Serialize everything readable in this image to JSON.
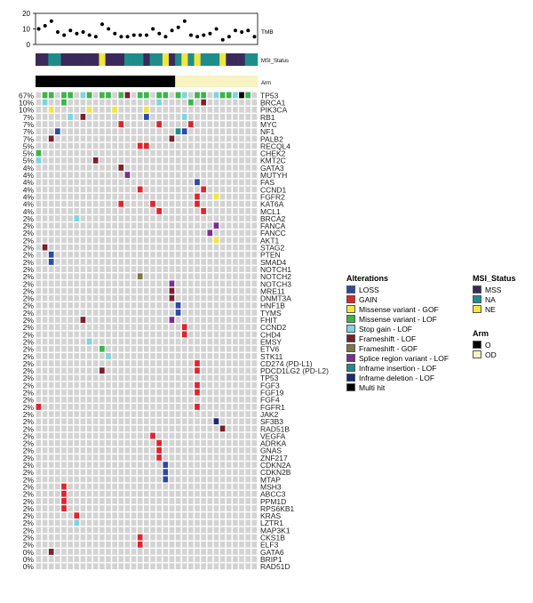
{
  "chart_data": {
    "type": "heatmap",
    "tmb": {
      "label": "TMB",
      "yticks": [
        0,
        10,
        20
      ],
      "ylim": [
        0,
        20
      ],
      "values": [
        10,
        12,
        15,
        8,
        6,
        9,
        7,
        8,
        6,
        5,
        13,
        10,
        7,
        5,
        5,
        6,
        6,
        6,
        10,
        7,
        5,
        9,
        11,
        15,
        6,
        5,
        6,
        7,
        10,
        3,
        5,
        9,
        8,
        9,
        5
      ]
    },
    "msi_status": {
      "label": "MSI_Status",
      "values": [
        "MSS",
        "MSS",
        "NA",
        "NA",
        "MSS",
        "MSS",
        "MSS",
        "MSS",
        "MSS",
        "MSS",
        "NE",
        "MSS",
        "MSS",
        "MSS",
        "NA",
        "NA",
        "NA",
        "MSS",
        "NA",
        "NA",
        "NE",
        "MSS",
        "NA",
        "NE",
        "NA",
        "NE",
        "NA",
        "NA",
        "NA",
        "NE",
        "MSS",
        "MSS",
        "MSS",
        "NA",
        "NA"
      ]
    },
    "arm": {
      "label": "Arm",
      "values": [
        "O",
        "O",
        "O",
        "O",
        "O",
        "O",
        "O",
        "O",
        "O",
        "O",
        "O",
        "O",
        "O",
        "O",
        "O",
        "O",
        "O",
        "O",
        "O",
        "O",
        "O",
        "O",
        "OD",
        "OD",
        "OD",
        "OD",
        "OD",
        "OD",
        "OD",
        "OD",
        "OD",
        "OD",
        "OD",
        "OD",
        "OD"
      ]
    },
    "genes": [
      "TP53",
      "BRCA1",
      "PIK3CA",
      "RB1",
      "MYC",
      "NF1",
      "PALB2",
      "RECQL4",
      "CHEK2",
      "KMT2C",
      "GATA3",
      "MUTYH",
      "FAS",
      "CCND1",
      "FGFR2",
      "KAT6A",
      "MCL1",
      "BRCA2",
      "FANCA",
      "FANCC",
      "AKT1",
      "STAG2",
      "PTEN",
      "SMAD4",
      "NOTCH1",
      "NOTCH2",
      "NOTCH3",
      "MRE11",
      "DNMT3A",
      "HNF1B",
      "TYMS",
      "FHIT",
      "CCND2",
      "CHD4",
      "EMSY",
      "ETV6",
      "STK11",
      "CD274 (PD-L1)",
      "PDCD1LG2 (PD-L2)",
      "TP53",
      "FGF3",
      "FGF19",
      "FGF4",
      "FGFR1",
      "JAK2",
      "SF3B3",
      "RAD51B",
      "VEGFA",
      "ADRKA",
      "GNAS",
      "ZNF217",
      "CDKN2A",
      "CDKN2B",
      "MTAP",
      "MSH3",
      "ABCC3",
      "PPM1D",
      "RPS6KB1",
      "KRAS",
      "LZTR1",
      "MAP3K1",
      "CKS1B",
      "ELF3",
      "GATA6",
      "BRIP1",
      "RAD51D"
    ],
    "percents": [
      "67%",
      "10%",
      "10%",
      "7%",
      "7%",
      "7%",
      "7%",
      "5%",
      "5%",
      "5%",
      "4%",
      "4%",
      "4%",
      "4%",
      "4%",
      "4%",
      "4%",
      "2%",
      "2%",
      "2%",
      "2%",
      "2%",
      "2%",
      "2%",
      "2%",
      "2%",
      "2%",
      "2%",
      "2%",
      "2%",
      "2%",
      "2%",
      "2%",
      "2%",
      "2%",
      "2%",
      "2%",
      "2%",
      "2%",
      "2%",
      "2%",
      "2%",
      "2%",
      "2%",
      "2%",
      "2%",
      "2%",
      "2%",
      "2%",
      "2%",
      "2%",
      "2%",
      "2%",
      "2%",
      "2%",
      "2%",
      "2%",
      "2%",
      "2%",
      "2%",
      "2%",
      "2%",
      "2%",
      "0%",
      "0%",
      "0%"
    ],
    "alterations": [
      {
        "gene": "TP53",
        "sample": 1,
        "type": "Missense variant - LOF"
      },
      {
        "gene": "TP53",
        "sample": 2,
        "type": "Missense variant - LOF"
      },
      {
        "gene": "TP53",
        "sample": 4,
        "type": "Missense variant - LOF"
      },
      {
        "gene": "TP53",
        "sample": 5,
        "type": "Missense variant - LOF"
      },
      {
        "gene": "TP53",
        "sample": 7,
        "type": "Stop gain - LOF"
      },
      {
        "gene": "TP53",
        "sample": 8,
        "type": "Missense variant - LOF"
      },
      {
        "gene": "TP53",
        "sample": 10,
        "type": "Missense variant - LOF"
      },
      {
        "gene": "TP53",
        "sample": 11,
        "type": "Missense variant - LOF"
      },
      {
        "gene": "TP53",
        "sample": 13,
        "type": "Missense variant - LOF"
      },
      {
        "gene": "TP53",
        "sample": 14,
        "type": "Frameshift - LOF"
      },
      {
        "gene": "TP53",
        "sample": 16,
        "type": "Missense variant - LOF"
      },
      {
        "gene": "TP53",
        "sample": 17,
        "type": "Missense variant - LOF"
      },
      {
        "gene": "TP53",
        "sample": 19,
        "type": "Missense variant - LOF"
      },
      {
        "gene": "TP53",
        "sample": 20,
        "type": "Missense variant - LOF"
      },
      {
        "gene": "TP53",
        "sample": 22,
        "type": "Missense variant - LOF"
      },
      {
        "gene": "TP53",
        "sample": 23,
        "type": "Stop gain - LOF"
      },
      {
        "gene": "TP53",
        "sample": 25,
        "type": "Missense variant - LOF"
      },
      {
        "gene": "TP53",
        "sample": 26,
        "type": "Missense variant - LOF"
      },
      {
        "gene": "TP53",
        "sample": 28,
        "type": "Stop gain - LOF"
      },
      {
        "gene": "TP53",
        "sample": 29,
        "type": "Missense variant - LOF"
      },
      {
        "gene": "TP53",
        "sample": 30,
        "type": "Missense variant - LOF"
      },
      {
        "gene": "TP53",
        "sample": 31,
        "type": "Stop gain - LOF"
      },
      {
        "gene": "TP53",
        "sample": 32,
        "type": "Multi hit"
      },
      {
        "gene": "TP53",
        "sample": 33,
        "type": "Missense variant - LOF"
      },
      {
        "gene": "BRCA1",
        "sample": 1,
        "type": "Stop gain - LOF"
      },
      {
        "gene": "BRCA1",
        "sample": 4,
        "type": "Missense variant - LOF"
      },
      {
        "gene": "BRCA1",
        "sample": 19,
        "type": "Stop gain - LOF"
      },
      {
        "gene": "BRCA1",
        "sample": 24,
        "type": "Missense variant - LOF"
      },
      {
        "gene": "BRCA1",
        "sample": 26,
        "type": "Frameshift - LOF"
      },
      {
        "gene": "PIK3CA",
        "sample": 2,
        "type": "Missense variant - GOF"
      },
      {
        "gene": "PIK3CA",
        "sample": 8,
        "type": "Missense variant - GOF"
      },
      {
        "gene": "PIK3CA",
        "sample": 12,
        "type": "Missense variant - GOF"
      },
      {
        "gene": "PIK3CA",
        "sample": 17,
        "type": "Missense variant - GOF"
      },
      {
        "gene": "RB1",
        "sample": 5,
        "type": "Stop gain - LOF"
      },
      {
        "gene": "RB1",
        "sample": 7,
        "type": "Frameshift - LOF"
      },
      {
        "gene": "RB1",
        "sample": 17,
        "type": "LOSS"
      },
      {
        "gene": "RB1",
        "sample": 23,
        "type": "Stop gain - LOF"
      },
      {
        "gene": "MYC",
        "sample": 13,
        "type": "GAIN"
      },
      {
        "gene": "MYC",
        "sample": 19,
        "type": "GAIN"
      },
      {
        "gene": "MYC",
        "sample": 24,
        "type": "GAIN"
      },
      {
        "gene": "NF1",
        "sample": 3,
        "type": "LOSS"
      },
      {
        "gene": "NF1",
        "sample": 22,
        "type": "Inframe insertion - LOF"
      },
      {
        "gene": "NF1",
        "sample": 23,
        "type": "LOSS"
      },
      {
        "gene": "PALB2",
        "sample": 2,
        "type": "Frameshift - LOF"
      },
      {
        "gene": "PALB2",
        "sample": 21,
        "type": "Frameshift - LOF"
      },
      {
        "gene": "RECQL4",
        "sample": 16,
        "type": "GAIN"
      },
      {
        "gene": "RECQL4",
        "sample": 17,
        "type": "GAIN"
      },
      {
        "gene": "CHEK2",
        "sample": 0,
        "type": "Missense variant - LOF"
      },
      {
        "gene": "KMT2C",
        "sample": 0,
        "type": "Stop gain - LOF"
      },
      {
        "gene": "KMT2C",
        "sample": 9,
        "type": "Frameshift - LOF"
      },
      {
        "gene": "GATA3",
        "sample": 13,
        "type": "Frameshift - LOF"
      },
      {
        "gene": "MUTYH",
        "sample": 14,
        "type": "Splice region variant - LOF"
      },
      {
        "gene": "FAS",
        "sample": 25,
        "type": "LOSS"
      },
      {
        "gene": "CCND1",
        "sample": 16,
        "type": "GAIN"
      },
      {
        "gene": "CCND1",
        "sample": 26,
        "type": "GAIN"
      },
      {
        "gene": "FGFR2",
        "sample": 25,
        "type": "GAIN"
      },
      {
        "gene": "FGFR2",
        "sample": 28,
        "type": "Missense variant - GOF"
      },
      {
        "gene": "KAT6A",
        "sample": 13,
        "type": "GAIN"
      },
      {
        "gene": "KAT6A",
        "sample": 18,
        "type": "GAIN"
      },
      {
        "gene": "KAT6A",
        "sample": 25,
        "type": "GAIN"
      },
      {
        "gene": "MCL1",
        "sample": 19,
        "type": "GAIN"
      },
      {
        "gene": "MCL1",
        "sample": 26,
        "type": "GAIN"
      },
      {
        "gene": "BRCA2",
        "sample": 6,
        "type": "Stop gain - LOF"
      },
      {
        "gene": "FANCA",
        "sample": 28,
        "type": "Splice region variant - LOF"
      },
      {
        "gene": "FANCC",
        "sample": 27,
        "type": "Splice region variant - LOF"
      },
      {
        "gene": "AKT1",
        "sample": 28,
        "type": "Missense variant - GOF"
      },
      {
        "gene": "STAG2",
        "sample": 1,
        "type": "Frameshift - LOF"
      },
      {
        "gene": "PTEN",
        "sample": 2,
        "type": "LOSS"
      },
      {
        "gene": "SMAD4",
        "sample": 2,
        "type": "LOSS"
      },
      {
        "gene": "NOTCH2",
        "sample": 16,
        "type": "Frameshift - GOF"
      },
      {
        "gene": "NOTCH3",
        "sample": 21,
        "type": "Splice region variant - LOF"
      },
      {
        "gene": "MRE11",
        "sample": 21,
        "type": "Frameshift - LOF"
      },
      {
        "gene": "DNMT3A",
        "sample": 21,
        "type": "Frameshift - LOF"
      },
      {
        "gene": "HNF1B",
        "sample": 22,
        "type": "LOSS"
      },
      {
        "gene": "TYMS",
        "sample": 22,
        "type": "LOSS"
      },
      {
        "gene": "FHIT",
        "sample": 7,
        "type": "Frameshift - LOF"
      },
      {
        "gene": "FHIT",
        "sample": 21,
        "type": "Splice region variant - LOF"
      },
      {
        "gene": "CCND2",
        "sample": 23,
        "type": "GAIN"
      },
      {
        "gene": "CHD4",
        "sample": 23,
        "type": "GAIN"
      },
      {
        "gene": "EMSY",
        "sample": 8,
        "type": "Stop gain - LOF"
      },
      {
        "gene": "ETV6",
        "sample": 10,
        "type": "Missense variant - LOF"
      },
      {
        "gene": "STK11",
        "sample": 11,
        "type": "Stop gain - LOF"
      },
      {
        "gene": "CD274 (PD-L1)",
        "sample": 25,
        "type": "GAIN"
      },
      {
        "gene": "PDCD1LG2 (PD-L2)",
        "sample": 10,
        "type": "Frameshift - LOF"
      },
      {
        "gene": "PDCD1LG2 (PD-L2)",
        "sample": 25,
        "type": "GAIN"
      },
      {
        "gene": "FGF3",
        "sample": 25,
        "type": "GAIN"
      },
      {
        "gene": "FGF19",
        "sample": 25,
        "type": "GAIN"
      },
      {
        "gene": "FGFR1",
        "sample": 0,
        "type": "GAIN"
      },
      {
        "gene": "FGFR1",
        "sample": 25,
        "type": "GAIN"
      },
      {
        "gene": "SF3B3",
        "sample": 28,
        "type": "Inframe deletion - LOF"
      },
      {
        "gene": "RAD51B",
        "sample": 29,
        "type": "Frameshift - LOF"
      },
      {
        "gene": "VEGFA",
        "sample": 18,
        "type": "GAIN"
      },
      {
        "gene": "ADRKA",
        "sample": 19,
        "type": "GAIN"
      },
      {
        "gene": "GNAS",
        "sample": 19,
        "type": "GAIN"
      },
      {
        "gene": "ZNF217",
        "sample": 19,
        "type": "GAIN"
      },
      {
        "gene": "CDKN2A",
        "sample": 20,
        "type": "LOSS"
      },
      {
        "gene": "CDKN2B",
        "sample": 20,
        "type": "LOSS"
      },
      {
        "gene": "MTAP",
        "sample": 20,
        "type": "LOSS"
      },
      {
        "gene": "MSH3",
        "sample": 4,
        "type": "GAIN"
      },
      {
        "gene": "ABCC3",
        "sample": 4,
        "type": "GAIN"
      },
      {
        "gene": "PPM1D",
        "sample": 4,
        "type": "GAIN"
      },
      {
        "gene": "RPS6KB1",
        "sample": 4,
        "type": "GAIN"
      },
      {
        "gene": "KRAS",
        "sample": 6,
        "type": "GAIN"
      },
      {
        "gene": "LZTR1",
        "sample": 6,
        "type": "Stop gain - LOF"
      },
      {
        "gene": "CKS1B",
        "sample": 16,
        "type": "GAIN"
      },
      {
        "gene": "ELF3",
        "sample": 16,
        "type": "GAIN"
      },
      {
        "gene": "GATA6",
        "sample": 2,
        "type": "Frameshift - LOF"
      }
    ],
    "legend_alterations": {
      "title": "Alterations",
      "items": [
        {
          "label": "LOSS",
          "color": "#2c4aa5"
        },
        {
          "label": "GAIN",
          "color": "#e3222d"
        },
        {
          "label": "Missense variant - GOF",
          "color": "#f2e63f"
        },
        {
          "label": "Missense variant - LOF",
          "color": "#3bb54a"
        },
        {
          "label": "Stop gain - LOF",
          "color": "#7fd4e0"
        },
        {
          "label": "Frameshift - LOF",
          "color": "#7a1f2b"
        },
        {
          "label": "Frameshift - GOF",
          "color": "#7b7a46"
        },
        {
          "label": "Splice region variant - LOF",
          "color": "#7b2e8e"
        },
        {
          "label": "Inframe insertion - LOF",
          "color": "#1f8c8c"
        },
        {
          "label": "Inframe deletion - LOF",
          "color": "#1c2a6e"
        },
        {
          "label": "Multi hit",
          "color": "#000000"
        }
      ]
    },
    "legend_msi": {
      "title": "MSI_Status",
      "items": [
        {
          "label": "MSS",
          "color": "#3a2a5c"
        },
        {
          "label": "NA",
          "color": "#1f8c8c"
        },
        {
          "label": "NE",
          "color": "#f2e63f"
        }
      ]
    },
    "legend_arm": {
      "title": "Arm",
      "items": [
        {
          "label": "O",
          "color": "#000000"
        },
        {
          "label": "OD",
          "color": "#f7f3c2"
        }
      ]
    },
    "grid_color": "#d3d3d3"
  }
}
